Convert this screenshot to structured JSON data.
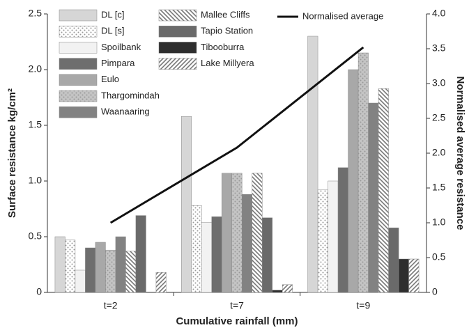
{
  "chart_data": {
    "type": "bar",
    "x_label": "Cumulative rainfall (mm)",
    "y_label": "Surface resistance kg/cm²",
    "y2_label": "Normalised average resistance",
    "categories": [
      "t=2",
      "t=7",
      "t=9"
    ],
    "ylim": [
      0,
      2.5
    ],
    "yticks": [
      0,
      0.5,
      {
        "value": 1,
        "label": "1.0"
      },
      1.5,
      {
        "value": 2,
        "label": "2.0"
      },
      2.5
    ],
    "y2lim": [
      0,
      4
    ],
    "y2ticks": [
      0,
      0.5,
      {
        "value": 1,
        "label": "1.0"
      },
      1.5,
      {
        "value": 2,
        "label": "2.0"
      },
      2.5,
      {
        "value": 3,
        "label": "3.0"
      },
      3.5,
      {
        "value": 4,
        "label": "4.0"
      }
    ],
    "series": [
      {
        "name": "DL [c]",
        "color": "#d6d6d6",
        "values": [
          0.5,
          1.58,
          2.3
        ]
      },
      {
        "name": "DL [s]",
        "color": "#ffffff",
        "pattern": "dots",
        "values": [
          0.47,
          0.78,
          0.92
        ]
      },
      {
        "name": "Spoilbank",
        "color": "#f2f2f2",
        "values": [
          0.2,
          0.63,
          1.0
        ]
      },
      {
        "name": "Pimpara",
        "color": "#6e6e6e",
        "values": [
          0.4,
          0.68,
          1.12
        ]
      },
      {
        "name": "Eulo",
        "color": "#a8a8a8",
        "values": [
          0.45,
          1.07,
          2.0
        ]
      },
      {
        "name": "Thargomindah",
        "color": "#c4c4c4",
        "pattern": "dots",
        "values": [
          0.38,
          1.07,
          2.15
        ]
      },
      {
        "name": "Waanaaring",
        "color": "#828282",
        "values": [
          0.5,
          0.88,
          1.7
        ]
      },
      {
        "name": "Mallee Cliffs",
        "color": "#ffffff",
        "pattern": "backhatch",
        "values": [
          0.37,
          1.07,
          1.83
        ]
      },
      {
        "name": "Tapio Station",
        "color": "#6a6a6a",
        "values": [
          0.69,
          0.67,
          0.58
        ]
      },
      {
        "name": "Tibooburra",
        "color": "#2e2e2e",
        "values": [
          0,
          0.02,
          0.3
        ]
      },
      {
        "name": "Lake Millyera",
        "color": "#ffffff",
        "pattern": "hatch",
        "values": [
          0.18,
          0.07,
          0.3
        ]
      },
      {
        "name": "Normalised average",
        "color": "#111111",
        "type": "line",
        "axis": "y2",
        "values": [
          1.0,
          2.08,
          3.52
        ]
      }
    ]
  }
}
